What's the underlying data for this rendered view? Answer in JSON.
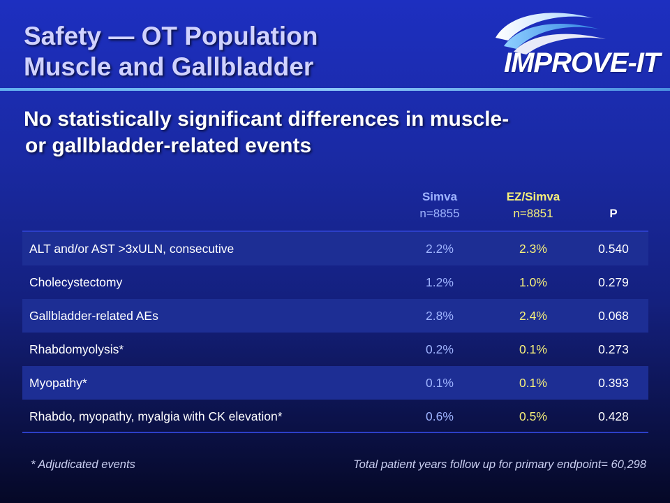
{
  "title": {
    "line1": "Safety — OT Population",
    "line2": "Muscle and Gallbladder"
  },
  "logo": {
    "text": "IMPROVE-IT"
  },
  "subtitle": {
    "line1": "No statistically significant differences in muscle-",
    "line2": "or gallbladder-related events"
  },
  "table": {
    "headers": {
      "simva_name": "Simva",
      "simva_n": "n=8855",
      "ez_name": "EZ/Simva",
      "ez_n": "n=8851",
      "p": "P"
    },
    "rows": [
      {
        "label": "ALT and/or AST >3xULN, consecutive",
        "simva": "2.2%",
        "ez": "2.3%",
        "p": "0.540"
      },
      {
        "label": "Cholecystectomy",
        "simva": "1.2%",
        "ez": "1.0%",
        "p": "0.279"
      },
      {
        "label": "Gallbladder-related AEs",
        "simva": "2.8%",
        "ez": "2.4%",
        "p": "0.068"
      },
      {
        "label": "Rhabdomyolysis*",
        "simva": "0.2%",
        "ez": "0.1%",
        "p": "0.273"
      },
      {
        "label": "Myopathy*",
        "simva": "0.1%",
        "ez": "0.1%",
        "p": "0.393"
      },
      {
        "label": "Rhabdo, myopathy, myalgia with CK elevation*",
        "simva": "0.6%",
        "ez": "0.5%",
        "p": "0.428"
      }
    ]
  },
  "footnotes": {
    "left": "* Adjudicated events",
    "right": "Total patient years  follow up for primary endpoint= 60,298"
  },
  "colors": {
    "simva": "#9fb4ff",
    "ez": "#f7f07a",
    "title": "#d0d2ff",
    "rule": "#62b0f0"
  }
}
